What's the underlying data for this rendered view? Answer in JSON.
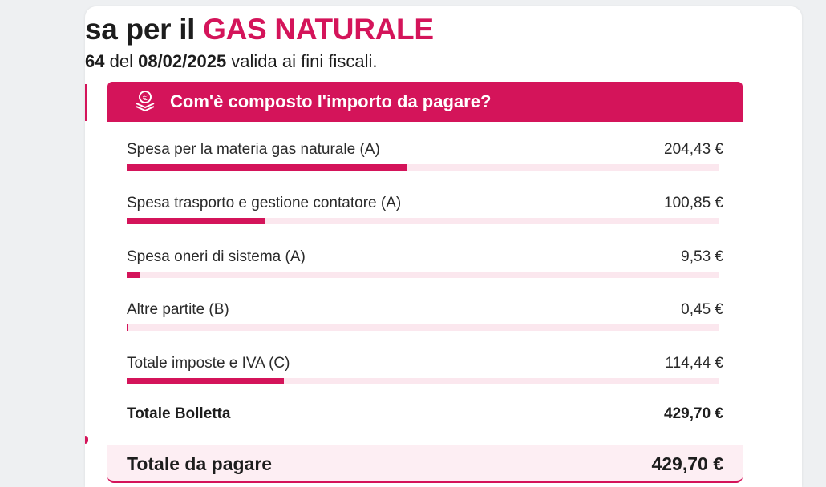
{
  "document": {
    "title_prefix": "sa per il ",
    "title_accent": "GAS NATURALE",
    "subtitle_prefix": "64",
    "subtitle_mid": " del ",
    "subtitle_date": "08/02/2025",
    "subtitle_suffix": " valida ai fini fiscali."
  },
  "section": {
    "icon": "euro-coins-icon",
    "header": "Com'è composto l'importo da pagare?",
    "items": [
      {
        "label": "Spesa per la materia gas naturale (A)",
        "amount": "204,43 €",
        "value": 204.43
      },
      {
        "label": "Spesa trasporto e gestione contatore (A)",
        "amount": "100,85 €",
        "value": 100.85
      },
      {
        "label": "Spesa oneri di sistema (A)",
        "amount": "9,53 €",
        "value": 9.53
      },
      {
        "label": "Altre partite (B)",
        "amount": "0,45 €",
        "value": 0.45
      },
      {
        "label": "Totale imposte e IVA (C)",
        "amount": "114,44 €",
        "value": 114.44
      }
    ],
    "total_bolletta": {
      "label": "Totale Bolletta",
      "amount": "429,70 €"
    },
    "total_da_pagare": {
      "label": "Totale da pagare",
      "amount": "429,70 €"
    }
  },
  "colors": {
    "accent": "#d4145a",
    "track": "#fbe7ee"
  }
}
